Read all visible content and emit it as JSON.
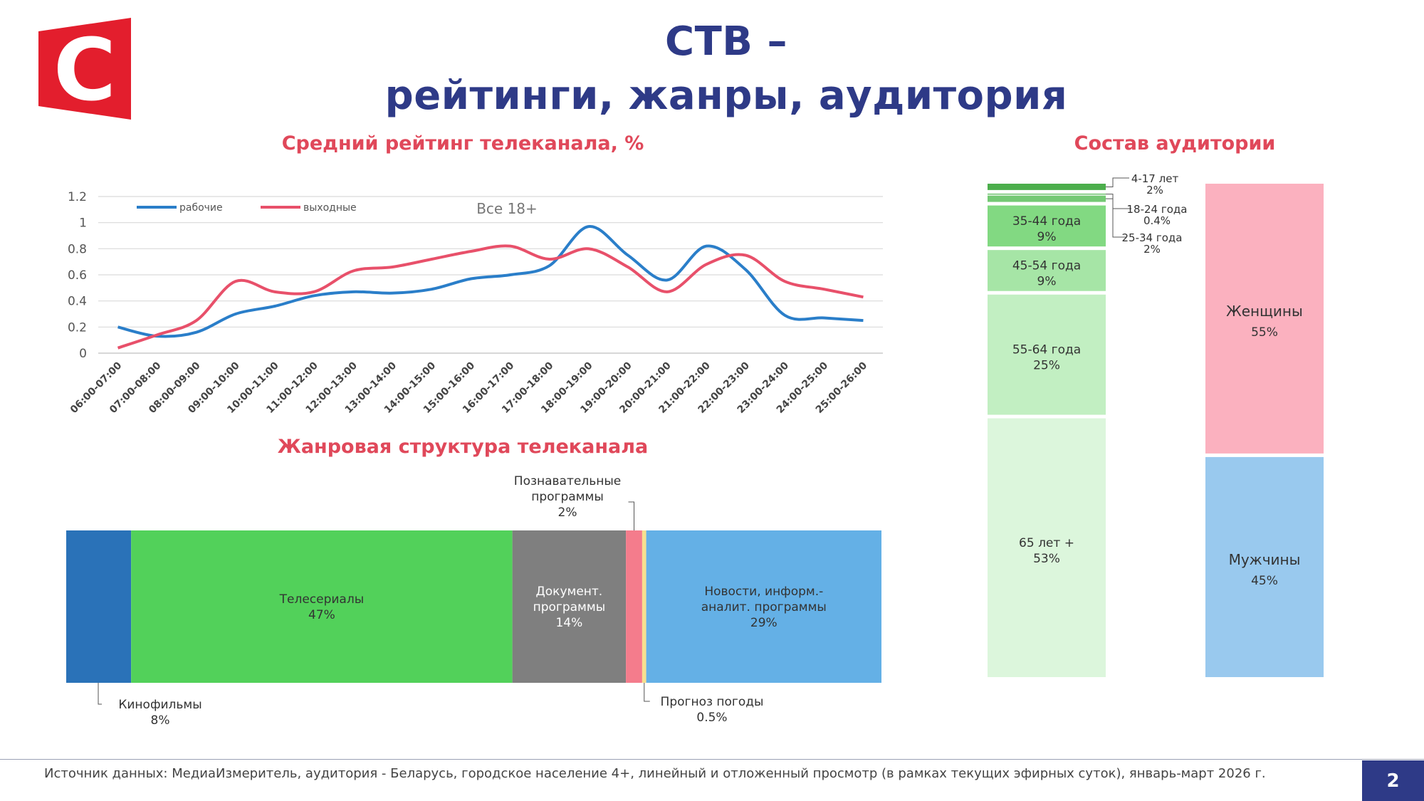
{
  "header": {
    "title_line1": "СТВ –",
    "title_line2": "рейтинги, жанры, аудитория",
    "logo_letter": "С",
    "logo_color": "#e31e2d"
  },
  "sections": {
    "rating_title": "Средний рейтинг телеканала, %",
    "genre_title": "Жанровая структура телеканала",
    "audience_title": "Состав аудитории"
  },
  "chart_data": [
    {
      "type": "line",
      "title": "Средний рейтинг телеканала, %",
      "annotation": "Все 18+",
      "ylim": [
        0,
        1.2
      ],
      "yticks": [
        "0",
        "0.2",
        "0.4",
        "0.6",
        "0.8",
        "1",
        "1.2"
      ],
      "grid": true,
      "legend_position": "top-left",
      "categories": [
        "06:00-07:00",
        "07:00-08:00",
        "08:00-09:00",
        "09:00-10:00",
        "10:00-11:00",
        "11:00-12:00",
        "12:00-13:00",
        "13:00-14:00",
        "14:00-15:00",
        "15:00-16:00",
        "16:00-17:00",
        "17:00-18:00",
        "18:00-19:00",
        "19:00-20:00",
        "20:00-21:00",
        "21:00-22:00",
        "22:00-23:00",
        "23:00-24:00",
        "24:00-25:00",
        "25:00-26:00"
      ],
      "series": [
        {
          "name": "рабочие",
          "color": "#2a7ec9",
          "values": [
            0.2,
            0.13,
            0.16,
            0.3,
            0.36,
            0.44,
            0.47,
            0.46,
            0.49,
            0.57,
            0.6,
            0.67,
            0.97,
            0.75,
            0.56,
            0.82,
            0.64,
            0.29,
            0.27,
            0.25
          ]
        },
        {
          "name": "выходные",
          "color": "#e8506a",
          "values": [
            0.04,
            0.14,
            0.25,
            0.55,
            0.47,
            0.47,
            0.63,
            0.66,
            0.72,
            0.78,
            0.82,
            0.72,
            0.8,
            0.66,
            0.47,
            0.68,
            0.75,
            0.55,
            0.49,
            0.43
          ]
        }
      ]
    },
    {
      "type": "bar",
      "stacked": true,
      "orientation": "horizontal",
      "title": "Жанровая структура телеканала",
      "segments": [
        {
          "name": "Кинофильмы",
          "value": 8,
          "label": "8%",
          "color": "#2a72b8",
          "callout": "below-left"
        },
        {
          "name": "Телесериалы",
          "value": 47,
          "label": "47%",
          "color": "#52d15a",
          "callout": "inside"
        },
        {
          "name": "Документ. программы",
          "value": 14,
          "label": "14%",
          "color": "#7f7f7f",
          "callout": "inside"
        },
        {
          "name": "Познавательные программы",
          "value": 2,
          "label": "2%",
          "color": "#f47c8c",
          "callout": "above"
        },
        {
          "name": "Прогноз погоды",
          "value": 0.5,
          "label": "0.5%",
          "color": "#f7e08f",
          "callout": "below-right"
        },
        {
          "name": "Новости, информ.- аналит. программы",
          "value": 29,
          "label": "29%",
          "color": "#64b0e6",
          "callout": "inside"
        }
      ]
    },
    {
      "type": "bar",
      "stacked": true,
      "orientation": "vertical",
      "title": "Состав аудитории",
      "segments_age": [
        {
          "name": "4-17 лет",
          "value": 2,
          "label": "2%",
          "color": "#4cae4c",
          "callout": "right"
        },
        {
          "name": "18-24 года",
          "value": 0.4,
          "label": "0.4%",
          "color": "#6cc26c",
          "callout": "right"
        },
        {
          "name": "25-34 года",
          "value": 2,
          "label": "2%",
          "color": "#74c974",
          "callout": "right"
        },
        {
          "name": "35-44 года",
          "value": 9,
          "label": "9%",
          "color": "#82d982",
          "callout": "inside"
        },
        {
          "name": "45-54 года",
          "value": 9,
          "label": "9%",
          "color": "#a6e5a6",
          "callout": "inside"
        },
        {
          "name": "55-64 года",
          "value": 25,
          "label": "25%",
          "color": "#c2efc2",
          "callout": "inside"
        },
        {
          "name": "65 лет +",
          "value": 53,
          "label": "53%",
          "color": "#dcf6dc",
          "callout": "inside"
        }
      ],
      "segments_gender": [
        {
          "name": "Женщины",
          "value": 55,
          "label": "55%",
          "color": "#fbb1bf"
        },
        {
          "name": "Мужчины",
          "value": 45,
          "label": "45%",
          "color": "#99c9ee"
        }
      ]
    }
  ],
  "footer": {
    "source": "Источник данных: МедиаИзмеритель, аудитория - Беларусь, городское население 4+, линейный и отложенный просмотр (в рамках текущих эфирных суток), январь-март 2026 г.",
    "page": "2"
  }
}
